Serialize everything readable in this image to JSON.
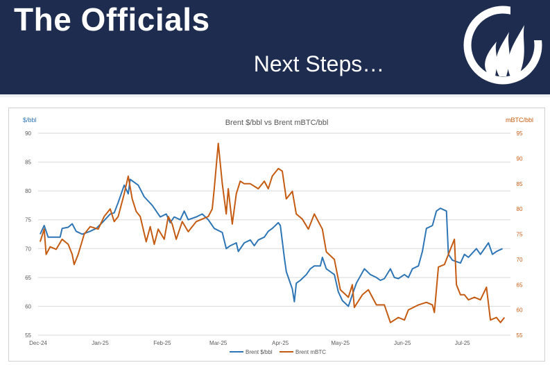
{
  "header": {
    "title": "The Officials",
    "subtitle": "Next Steps…",
    "background_color": "#1e2c4f",
    "logo_icon": "flame-circle-logo-icon"
  },
  "chart_data": {
    "type": "line",
    "title": "Brent $/bbl vs Brent mBTC/bbl",
    "left_axis": {
      "label": "$/bbl",
      "ylim": [
        55,
        90
      ],
      "ticks": [
        55,
        60,
        65,
        70,
        75,
        80,
        85,
        90
      ],
      "color": "#2e75b6"
    },
    "right_axis": {
      "label": "mBTC/bbl",
      "ylim": [
        55,
        95
      ],
      "ticks": [
        55,
        60,
        65,
        70,
        75,
        80,
        85,
        90,
        95
      ],
      "color": "#c55a11"
    },
    "x_tick_labels": [
      "Dec-24",
      "Jan-25",
      "Feb-25",
      "Mar-25",
      "Apr-25",
      "May-25",
      "Jun-25",
      "Jul-25"
    ],
    "x_tick_dates": [
      "2024-12-01",
      "2025-01-01",
      "2025-02-01",
      "2025-03-01",
      "2025-04-01",
      "2025-05-01",
      "2025-06-01",
      "2025-07-01"
    ],
    "x_range": [
      "2024-12-01",
      "2025-07-25"
    ],
    "grid": "horizontal",
    "legend_position": "bottom",
    "series": [
      {
        "name": "Brent $/bbl",
        "axis": "left",
        "color": "#2e75b6",
        "points": [
          [
            "2024-12-02",
            72.5
          ],
          [
            "2024-12-04",
            74.0
          ],
          [
            "2024-12-06",
            72.0
          ],
          [
            "2024-12-09",
            72.0
          ],
          [
            "2024-12-12",
            72.0
          ],
          [
            "2024-12-13",
            73.5
          ],
          [
            "2024-12-16",
            73.7
          ],
          [
            "2024-12-18",
            74.3
          ],
          [
            "2024-12-20",
            73.0
          ],
          [
            "2024-12-23",
            72.5
          ],
          [
            "2024-12-27",
            73.0
          ],
          [
            "2024-12-30",
            73.5
          ],
          [
            "2025-01-02",
            74.5
          ],
          [
            "2025-01-06",
            76.0
          ],
          [
            "2025-01-08",
            76.2
          ],
          [
            "2025-01-10",
            78.0
          ],
          [
            "2025-01-13",
            81.0
          ],
          [
            "2025-01-15",
            79.5
          ],
          [
            "2025-01-16",
            82.0
          ],
          [
            "2025-01-20",
            81.0
          ],
          [
            "2025-01-23",
            79.0
          ],
          [
            "2025-01-27",
            77.5
          ],
          [
            "2025-01-31",
            75.5
          ],
          [
            "2025-02-03",
            76.0
          ],
          [
            "2025-02-05",
            74.5
          ],
          [
            "2025-02-07",
            75.5
          ],
          [
            "2025-02-10",
            75.0
          ],
          [
            "2025-02-12",
            76.5
          ],
          [
            "2025-02-14",
            75.0
          ],
          [
            "2025-02-18",
            75.5
          ],
          [
            "2025-02-21",
            76.0
          ],
          [
            "2025-02-24",
            75.0
          ],
          [
            "2025-02-27",
            73.5
          ],
          [
            "2025-03-03",
            72.8
          ],
          [
            "2025-03-05",
            70.0
          ],
          [
            "2025-03-07",
            70.5
          ],
          [
            "2025-03-10",
            71.0
          ],
          [
            "2025-03-11",
            69.5
          ],
          [
            "2025-03-14",
            71.0
          ],
          [
            "2025-03-17",
            71.5
          ],
          [
            "2025-03-19",
            70.5
          ],
          [
            "2025-03-21",
            71.5
          ],
          [
            "2025-03-24",
            72.0
          ],
          [
            "2025-03-26",
            73.0
          ],
          [
            "2025-03-28",
            73.5
          ],
          [
            "2025-03-31",
            74.5
          ],
          [
            "2025-04-01",
            74.0
          ],
          [
            "2025-04-03",
            68.5
          ],
          [
            "2025-04-04",
            66.0
          ],
          [
            "2025-04-07",
            63.0
          ],
          [
            "2025-04-08",
            60.8
          ],
          [
            "2025-04-09",
            64.0
          ],
          [
            "2025-04-11",
            64.5
          ],
          [
            "2025-04-14",
            65.5
          ],
          [
            "2025-04-16",
            66.5
          ],
          [
            "2025-04-18",
            67.0
          ],
          [
            "2025-04-21",
            67.0
          ],
          [
            "2025-04-22",
            68.5
          ],
          [
            "2025-04-24",
            66.5
          ],
          [
            "2025-04-28",
            65.5
          ],
          [
            "2025-04-30",
            62.5
          ],
          [
            "2025-05-02",
            61.0
          ],
          [
            "2025-05-05",
            60.0
          ],
          [
            "2025-05-07",
            62.0
          ],
          [
            "2025-05-09",
            64.0
          ],
          [
            "2025-05-13",
            66.5
          ],
          [
            "2025-05-16",
            65.5
          ],
          [
            "2025-05-19",
            65.0
          ],
          [
            "2025-05-21",
            64.5
          ],
          [
            "2025-05-23",
            64.8
          ],
          [
            "2025-05-26",
            66.5
          ],
          [
            "2025-05-28",
            65.0
          ],
          [
            "2025-05-30",
            64.8
          ],
          [
            "2025-06-02",
            65.5
          ],
          [
            "2025-06-04",
            65.0
          ],
          [
            "2025-06-06",
            66.5
          ],
          [
            "2025-06-09",
            67.0
          ],
          [
            "2025-06-11",
            69.5
          ],
          [
            "2025-06-13",
            73.5
          ],
          [
            "2025-06-16",
            74.0
          ],
          [
            "2025-06-18",
            76.5
          ],
          [
            "2025-06-20",
            77.0
          ],
          [
            "2025-06-23",
            76.5
          ],
          [
            "2025-06-24",
            69.0
          ],
          [
            "2025-06-26",
            68.0
          ],
          [
            "2025-06-30",
            67.5
          ],
          [
            "2025-07-02",
            69.0
          ],
          [
            "2025-07-04",
            68.5
          ],
          [
            "2025-07-08",
            70.0
          ],
          [
            "2025-07-10",
            69.0
          ],
          [
            "2025-07-14",
            71.0
          ],
          [
            "2025-07-16",
            69.0
          ],
          [
            "2025-07-18",
            69.5
          ],
          [
            "2025-07-21",
            70.0
          ]
        ]
      },
      {
        "name": "Brent mBTC",
        "axis": "right",
        "color": "#c55a11",
        "points": [
          [
            "2024-12-02",
            73.5
          ],
          [
            "2024-12-04",
            76.0
          ],
          [
            "2024-12-05",
            71.0
          ],
          [
            "2024-12-07",
            72.5
          ],
          [
            "2024-12-10",
            72.0
          ],
          [
            "2024-12-13",
            74.0
          ],
          [
            "2024-12-16",
            73.0
          ],
          [
            "2024-12-18",
            71.0
          ],
          [
            "2024-12-19",
            69.0
          ],
          [
            "2024-12-21",
            71.0
          ],
          [
            "2024-12-24",
            75.0
          ],
          [
            "2024-12-27",
            76.5
          ],
          [
            "2024-12-31",
            76.0
          ],
          [
            "2025-01-03",
            78.5
          ],
          [
            "2025-01-06",
            80.0
          ],
          [
            "2025-01-08",
            77.5
          ],
          [
            "2025-01-10",
            78.5
          ],
          [
            "2025-01-13",
            83.0
          ],
          [
            "2025-01-15",
            86.5
          ],
          [
            "2025-01-17",
            82.0
          ],
          [
            "2025-01-19",
            79.5
          ],
          [
            "2025-01-21",
            78.5
          ],
          [
            "2025-01-24",
            73.5
          ],
          [
            "2025-01-26",
            76.5
          ],
          [
            "2025-01-28",
            73.0
          ],
          [
            "2025-01-30",
            76.0
          ],
          [
            "2025-02-02",
            74.0
          ],
          [
            "2025-02-04",
            78.5
          ],
          [
            "2025-02-06",
            77.0
          ],
          [
            "2025-02-08",
            74.0
          ],
          [
            "2025-02-11",
            77.5
          ],
          [
            "2025-02-14",
            75.5
          ],
          [
            "2025-02-18",
            77.5
          ],
          [
            "2025-02-21",
            78.0
          ],
          [
            "2025-02-24",
            78.5
          ],
          [
            "2025-02-26",
            80.0
          ],
          [
            "2025-02-27",
            84.0
          ],
          [
            "2025-03-01",
            93.0
          ],
          [
            "2025-03-03",
            85.0
          ],
          [
            "2025-03-05",
            79.0
          ],
          [
            "2025-03-06",
            84.0
          ],
          [
            "2025-03-08",
            77.0
          ],
          [
            "2025-03-10",
            83.0
          ],
          [
            "2025-03-12",
            85.5
          ],
          [
            "2025-03-14",
            85.0
          ],
          [
            "2025-03-17",
            85.0
          ],
          [
            "2025-03-21",
            84.0
          ],
          [
            "2025-03-24",
            85.5
          ],
          [
            "2025-03-26",
            84.0
          ],
          [
            "2025-03-28",
            86.5
          ],
          [
            "2025-03-31",
            88.0
          ],
          [
            "2025-04-02",
            87.5
          ],
          [
            "2025-04-04",
            82.0
          ],
          [
            "2025-04-07",
            83.5
          ],
          [
            "2025-04-09",
            79.0
          ],
          [
            "2025-04-12",
            78.0
          ],
          [
            "2025-04-15",
            76.0
          ],
          [
            "2025-04-18",
            79.0
          ],
          [
            "2025-04-22",
            76.0
          ],
          [
            "2025-04-24",
            71.5
          ],
          [
            "2025-04-28",
            70.0
          ],
          [
            "2025-05-01",
            64.0
          ],
          [
            "2025-05-05",
            62.5
          ],
          [
            "2025-05-07",
            65.0
          ],
          [
            "2025-05-08",
            60.5
          ],
          [
            "2025-05-12",
            63.0
          ],
          [
            "2025-05-15",
            64.0
          ],
          [
            "2025-05-19",
            61.0
          ],
          [
            "2025-05-23",
            61.0
          ],
          [
            "2025-05-26",
            57.5
          ],
          [
            "2025-05-30",
            58.5
          ],
          [
            "2025-06-02",
            58.0
          ],
          [
            "2025-06-04",
            60.0
          ],
          [
            "2025-06-09",
            61.0
          ],
          [
            "2025-06-13",
            61.5
          ],
          [
            "2025-06-16",
            61.0
          ],
          [
            "2025-06-17",
            59.5
          ],
          [
            "2025-06-19",
            68.5
          ],
          [
            "2025-06-22",
            69.0
          ],
          [
            "2025-06-25",
            72.0
          ],
          [
            "2025-06-27",
            74.0
          ],
          [
            "2025-06-28",
            65.0
          ],
          [
            "2025-06-30",
            63.0
          ],
          [
            "2025-07-02",
            63.0
          ],
          [
            "2025-07-04",
            62.0
          ],
          [
            "2025-07-07",
            62.5
          ],
          [
            "2025-07-10",
            62.0
          ],
          [
            "2025-07-13",
            64.5
          ],
          [
            "2025-07-15",
            58.0
          ],
          [
            "2025-07-18",
            58.5
          ],
          [
            "2025-07-20",
            57.5
          ],
          [
            "2025-07-22",
            58.5
          ]
        ]
      }
    ]
  }
}
